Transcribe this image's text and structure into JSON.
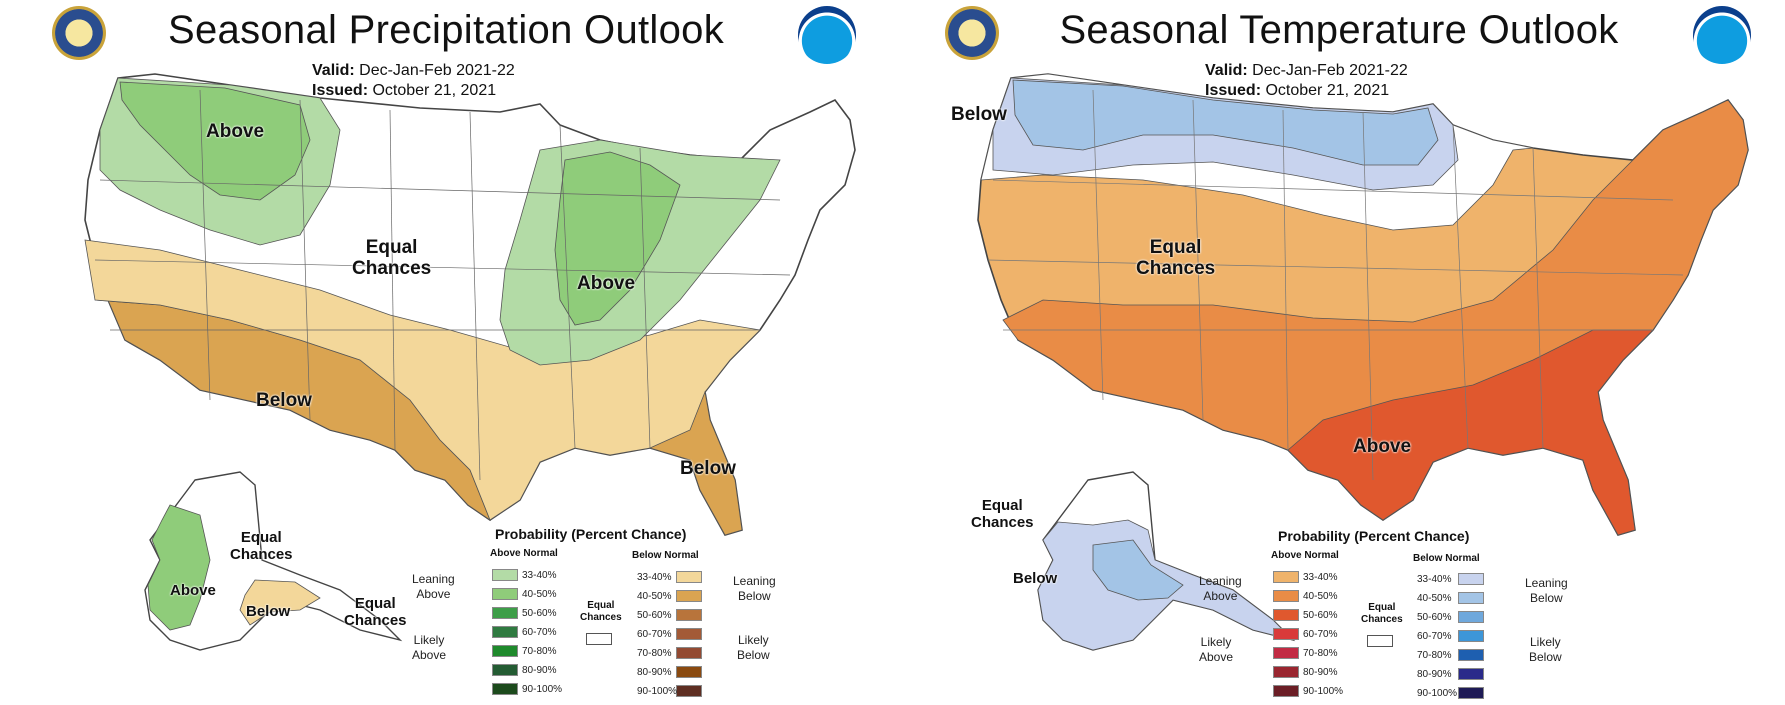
{
  "precip": {
    "title": "Seasonal Precipitation Outlook",
    "valid_label": "Valid:",
    "valid_value": "Dec-Jan-Feb 2021-22",
    "issued_label": "Issued:",
    "issued_value": "October 21, 2021",
    "labels": {
      "above_nw": "Above",
      "equal_center": "Equal\nChances",
      "above_ohio": "Above",
      "below_sw": "Below",
      "below_se": "Below",
      "equal_ak": "Equal\nChances",
      "above_ak": "Above",
      "below_ak": "Below",
      "equal_ak_se": "Equal\nChances"
    },
    "legend": {
      "title": "Probability (Percent Chance)",
      "above_head": "Above Normal",
      "below_head": "Below Normal",
      "leaning_above": "Leaning\nAbove",
      "likely_above": "Likely\nAbove",
      "leaning_below": "Leaning\nBelow",
      "likely_below": "Likely\nBelow",
      "equal": "Equal\nChances",
      "above_swatches": [
        {
          "label": "33-40%",
          "color": "#b3dba6"
        },
        {
          "label": "40-50%",
          "color": "#8fcc7a"
        },
        {
          "label": "50-60%",
          "color": "#3d9e48"
        },
        {
          "label": "60-70%",
          "color": "#2f7a40"
        },
        {
          "label": "70-80%",
          "color": "#1f8a2c"
        },
        {
          "label": "80-90%",
          "color": "#245c33"
        },
        {
          "label": "90-100%",
          "color": "#1c4a1c"
        }
      ],
      "below_swatches": [
        {
          "label": "33-40%",
          "color": "#f3d79a"
        },
        {
          "label": "40-50%",
          "color": "#daa451"
        },
        {
          "label": "50-60%",
          "color": "#b8743b"
        },
        {
          "label": "60-70%",
          "color": "#a35a37"
        },
        {
          "label": "70-80%",
          "color": "#934a32"
        },
        {
          "label": "80-90%",
          "color": "#8a4a10"
        },
        {
          "label": "90-100%",
          "color": "#5e2e22"
        }
      ]
    }
  },
  "temp": {
    "title": "Seasonal Temperature Outlook",
    "valid_label": "Valid:",
    "valid_value": "Dec-Jan-Feb 2021-22",
    "issued_label": "Issued:",
    "issued_value": "October 21, 2021",
    "labels": {
      "below_nw": "Below",
      "equal_center": "Equal\nChances",
      "above_se": "Above",
      "equal_ak": "Equal\nChances",
      "below_ak": "Below"
    },
    "legend": {
      "title": "Probability (Percent Chance)",
      "above_head": "Above Normal",
      "below_head": "Below Normal",
      "leaning_above": "Leaning\nAbove",
      "likely_above": "Likely\nAbove",
      "leaning_below": "Leaning\nBelow",
      "likely_below": "Likely\nBelow",
      "equal": "Equal\nChances",
      "above_swatches": [
        {
          "label": "33-40%",
          "color": "#efb36b"
        },
        {
          "label": "40-50%",
          "color": "#e98c46"
        },
        {
          "label": "50-60%",
          "color": "#e0582e"
        },
        {
          "label": "60-70%",
          "color": "#d93a3a"
        },
        {
          "label": "70-80%",
          "color": "#c22b44"
        },
        {
          "label": "80-90%",
          "color": "#9a2630"
        },
        {
          "label": "90-100%",
          "color": "#6b1e26"
        }
      ],
      "below_swatches": [
        {
          "label": "33-40%",
          "color": "#c8d3ee"
        },
        {
          "label": "40-50%",
          "color": "#a3c4e6"
        },
        {
          "label": "50-60%",
          "color": "#6fa8dc"
        },
        {
          "label": "60-70%",
          "color": "#3d96d8"
        },
        {
          "label": "70-80%",
          "color": "#1e5fb0"
        },
        {
          "label": "80-90%",
          "color": "#2a2a8a"
        },
        {
          "label": "90-100%",
          "color": "#1e1a55"
        }
      ]
    }
  }
}
